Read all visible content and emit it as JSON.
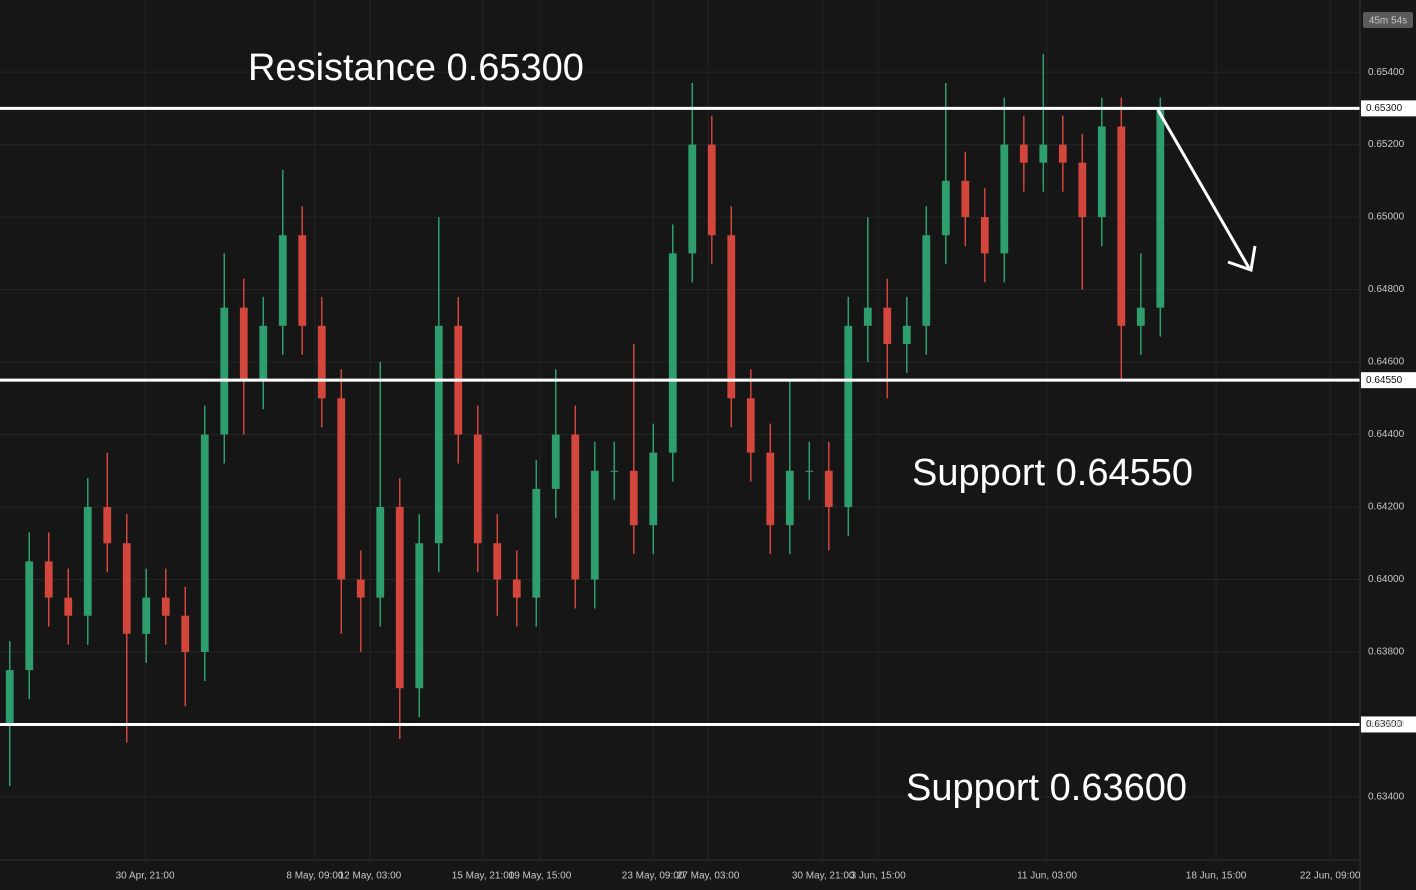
{
  "chart_data": {
    "type": "candlestick",
    "up_color": "#2f9e6e",
    "down_color": "#d2463c",
    "grid": true,
    "xlim": [
      0,
      69.74
    ],
    "xticks": [
      {
        "value": 7.44,
        "label": "30 Apr, 21:00"
      },
      {
        "value": 16.15,
        "label": "8 May, 09:00"
      },
      {
        "value": 18.97,
        "label": "12 May, 03:00"
      },
      {
        "value": 24.77,
        "label": "15 May, 21:00"
      },
      {
        "value": 27.69,
        "label": "19 May, 15:00"
      },
      {
        "value": 33.49,
        "label": "23 May, 09:00"
      },
      {
        "value": 36.31,
        "label": "27 May, 03:00"
      },
      {
        "value": 42.21,
        "label": "30 May, 21:00"
      },
      {
        "value": 45.03,
        "label": "3 Jun, 15:00"
      },
      {
        "value": 53.69,
        "label": "11 Jun, 03:00"
      },
      {
        "value": 62.36,
        "label": "18 Jun, 15:00"
      },
      {
        "value": 68.21,
        "label": "22 Jun, 09:00"
      }
    ],
    "ylim": [
      0.63226,
      0.65599
    ],
    "yticks": [
      {
        "value": 0.634,
        "label": "0.63400"
      },
      {
        "value": 0.636,
        "label": "0.63600"
      },
      {
        "value": 0.638,
        "label": "0.63800"
      },
      {
        "value": 0.64,
        "label": "0.64000"
      },
      {
        "value": 0.642,
        "label": "0.64200"
      },
      {
        "value": 0.644,
        "label": "0.64400"
      },
      {
        "value": 0.646,
        "label": "0.64600"
      },
      {
        "value": 0.648,
        "label": "0.64800"
      },
      {
        "value": 0.65,
        "label": "0.65000"
      },
      {
        "value": 0.652,
        "label": "0.65200"
      },
      {
        "value": 0.654,
        "label": "0.65400"
      }
    ],
    "countdown": "45m 54s",
    "levels": [
      {
        "value": 0.653,
        "label": "0.65300",
        "annotation": "Resistance 0.65300"
      },
      {
        "value": 0.6455,
        "label": "0.64550",
        "annotation": "Support 0.64550"
      },
      {
        "value": 0.636,
        "label": "0.63600",
        "annotation": "Support 0.63600"
      }
    ],
    "open": [
      0.636,
      0.6375,
      0.6405,
      0.6395,
      0.639,
      0.642,
      0.641,
      0.6385,
      0.6395,
      0.639,
      0.638,
      0.644,
      0.6475,
      0.6455,
      0.647,
      0.6495,
      0.647,
      0.645,
      0.64,
      0.6395,
      0.642,
      0.637,
      0.641,
      0.647,
      0.644,
      0.641,
      0.64,
      0.6395,
      0.6425,
      0.644,
      0.64,
      0.643,
      0.643,
      0.6415,
      0.6435,
      0.649,
      0.652,
      0.6495,
      0.645,
      0.6435,
      0.6415,
      0.643,
      0.643,
      0.642,
      0.647,
      0.6475,
      0.6465,
      0.647,
      0.6495,
      0.651,
      0.65,
      0.649,
      0.652,
      0.6515,
      0.652,
      0.6515,
      0.65,
      0.6525,
      0.647,
      0.6475
    ],
    "high": [
      0.6383,
      0.6413,
      0.6413,
      0.6403,
      0.6428,
      0.6435,
      0.6418,
      0.6403,
      0.6403,
      0.6398,
      0.6448,
      0.649,
      0.6483,
      0.6478,
      0.6513,
      0.6503,
      0.6478,
      0.6458,
      0.6408,
      0.646,
      0.6428,
      0.6418,
      0.65,
      0.6478,
      0.6448,
      0.6418,
      0.6408,
      0.6433,
      0.6458,
      0.6448,
      0.6438,
      0.6438,
      0.6465,
      0.6443,
      0.6498,
      0.6537,
      0.6528,
      0.6503,
      0.6458,
      0.6443,
      0.6455,
      0.6438,
      0.6438,
      0.6478,
      0.65,
      0.6483,
      0.6478,
      0.6503,
      0.6537,
      0.6518,
      0.6508,
      0.6533,
      0.6528,
      0.6545,
      0.6528,
      0.6523,
      0.6533,
      0.6533,
      0.649,
      0.6533
    ],
    "low": [
      0.6343,
      0.6367,
      0.6387,
      0.6382,
      0.6382,
      0.6402,
      0.6355,
      0.6377,
      0.6382,
      0.6365,
      0.6372,
      0.6432,
      0.644,
      0.6447,
      0.6462,
      0.6462,
      0.6442,
      0.6385,
      0.638,
      0.6387,
      0.6356,
      0.6362,
      0.6402,
      0.6432,
      0.6402,
      0.639,
      0.6387,
      0.6387,
      0.6417,
      0.6392,
      0.6392,
      0.6422,
      0.6407,
      0.6407,
      0.6427,
      0.6482,
      0.6487,
      0.6442,
      0.6427,
      0.6407,
      0.6407,
      0.6422,
      0.6408,
      0.6412,
      0.646,
      0.645,
      0.6457,
      0.6462,
      0.6487,
      0.6492,
      0.6482,
      0.6482,
      0.6507,
      0.6507,
      0.6507,
      0.648,
      0.6492,
      0.6455,
      0.6462,
      0.6467
    ],
    "close": [
      0.6375,
      0.6405,
      0.6395,
      0.639,
      0.642,
      0.641,
      0.6385,
      0.6395,
      0.639,
      0.638,
      0.644,
      0.6475,
      0.6455,
      0.647,
      0.6495,
      0.647,
      0.645,
      0.64,
      0.6395,
      0.642,
      0.637,
      0.641,
      0.647,
      0.644,
      0.641,
      0.64,
      0.6395,
      0.6425,
      0.644,
      0.64,
      0.643,
      0.643,
      0.6415,
      0.6435,
      0.649,
      0.652,
      0.6495,
      0.645,
      0.6435,
      0.6415,
      0.643,
      0.643,
      0.642,
      0.647,
      0.6475,
      0.6465,
      0.647,
      0.6495,
      0.651,
      0.65,
      0.649,
      0.652,
      0.6515,
      0.652,
      0.6515,
      0.65,
      0.6525,
      0.647,
      0.6475,
      0.653
    ]
  }
}
